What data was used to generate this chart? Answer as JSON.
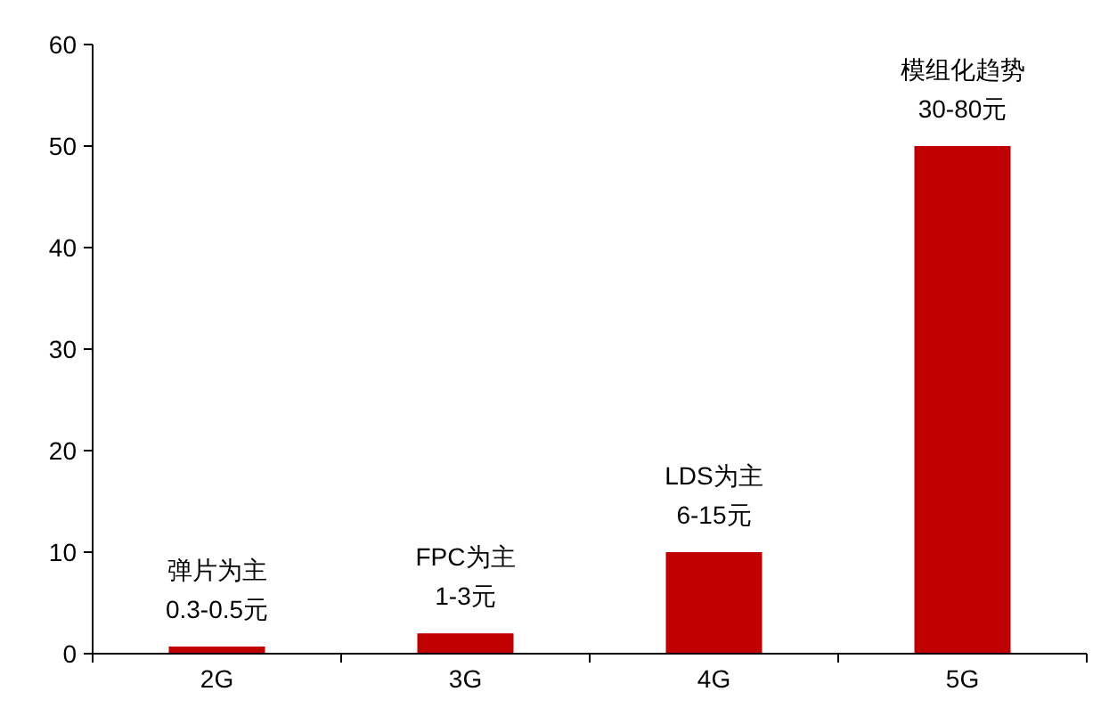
{
  "chart_data": {
    "type": "bar",
    "categories": [
      "2G",
      "3G",
      "4G",
      "5G"
    ],
    "values": [
      0.7,
      2,
      10,
      50
    ],
    "color": "#c00000",
    "ylim": [
      0,
      60
    ],
    "yticks": [
      0,
      10,
      20,
      30,
      40,
      50,
      60
    ],
    "grid": false,
    "annotations": [
      {
        "text": "弹片为主\n0.3-0.5元",
        "x": "2G",
        "y": 0.7
      },
      {
        "text": "FPC为主\n1-3元",
        "x": "3G",
        "y": 2
      },
      {
        "text": "LDS为主\n6-15元",
        "x": "4G",
        "y": 10
      },
      {
        "text": "模组化趋势\n30-80元",
        "x": "5G",
        "y": 50
      }
    ]
  }
}
